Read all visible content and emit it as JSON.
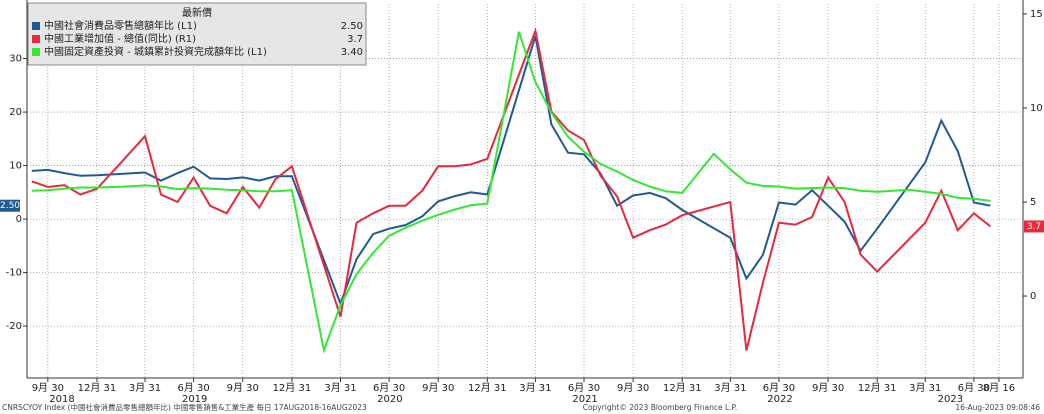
{
  "chart_data": {
    "type": "line",
    "legend_header": "最新價",
    "xlim": [
      "2018-08-22",
      "2023-09-30"
    ],
    "ylim": [
      -29.7,
      40.2
    ],
    "yticks": [
      -20,
      -10,
      0,
      10,
      20,
      30
    ],
    "y2lim": [
      -4.36,
      15.53
    ],
    "y2ticks": [
      0,
      5,
      10,
      15
    ],
    "grid": true,
    "xticks": [
      {
        "value": "2018-09-30",
        "label": "9月 30"
      },
      {
        "value": "2018-12-31",
        "label": "12月 31"
      },
      {
        "value": "2019-03-31",
        "label": "3月 31"
      },
      {
        "value": "2019-06-30",
        "label": "6月 30"
      },
      {
        "value": "2019-09-30",
        "label": "9月 30"
      },
      {
        "value": "2019-12-31",
        "label": "12月 31"
      },
      {
        "value": "2020-03-31",
        "label": "3月 31"
      },
      {
        "value": "2020-06-30",
        "label": "6月 30"
      },
      {
        "value": "2020-09-30",
        "label": "9月 30"
      },
      {
        "value": "2020-12-31",
        "label": "12月 31"
      },
      {
        "value": "2021-03-31",
        "label": "3月 31"
      },
      {
        "value": "2021-06-30",
        "label": "6月 30"
      },
      {
        "value": "2021-09-30",
        "label": "9月 30"
      },
      {
        "value": "2021-12-31",
        "label": "12月 31"
      },
      {
        "value": "2022-03-31",
        "label": "3月 31"
      },
      {
        "value": "2022-06-30",
        "label": "6月 30"
      },
      {
        "value": "2022-09-30",
        "label": "9月 30"
      },
      {
        "value": "2022-12-31",
        "label": "12月 31"
      },
      {
        "value": "2023-03-31",
        "label": "3月 31"
      },
      {
        "value": "2023-06-30",
        "label": "6月 30"
      },
      {
        "value": "2023-08-16",
        "label": "8月 16"
      }
    ],
    "x_year_labels": [
      "2018",
      "2019",
      "2020",
      "2021",
      "2022",
      "2023"
    ],
    "series": [
      {
        "name": "中國社會消費品零售總額年比 (L1)",
        "latest": "2.50",
        "color": "#1f5a94",
        "axis": "y",
        "x": [
          "2018-08-31",
          "2018-09-30",
          "2018-10-31",
          "2018-11-30",
          "2018-12-31",
          "2019-03-31",
          "2019-04-30",
          "2019-05-31",
          "2019-06-30",
          "2019-07-31",
          "2019-08-31",
          "2019-09-30",
          "2019-10-31",
          "2019-11-30",
          "2019-12-31",
          "2020-03-31",
          "2020-04-30",
          "2020-05-31",
          "2020-06-30",
          "2020-07-31",
          "2020-08-31",
          "2020-09-30",
          "2020-10-31",
          "2020-11-30",
          "2020-12-31",
          "2021-03-31",
          "2021-04-30",
          "2021-05-31",
          "2021-06-30",
          "2021-07-31",
          "2021-08-31",
          "2021-09-30",
          "2021-10-31",
          "2021-11-30",
          "2021-12-31",
          "2022-03-31",
          "2022-04-30",
          "2022-05-31",
          "2022-06-30",
          "2022-07-31",
          "2022-08-31",
          "2022-09-30",
          "2022-10-31",
          "2022-11-30",
          "2022-12-31",
          "2023-03-31",
          "2023-04-30",
          "2023-05-31",
          "2023-06-30",
          "2023-07-31"
        ],
        "values": [
          9.0,
          9.2,
          8.6,
          8.1,
          8.2,
          8.7,
          7.2,
          8.6,
          9.8,
          7.6,
          7.5,
          7.8,
          7.2,
          8.0,
          8.0,
          -15.8,
          -7.5,
          -2.8,
          -1.8,
          -1.1,
          0.5,
          3.3,
          4.3,
          5.0,
          4.6,
          34.2,
          17.7,
          12.4,
          12.1,
          8.5,
          2.5,
          4.4,
          4.9,
          3.9,
          1.7,
          -3.5,
          -11.1,
          -6.7,
          3.1,
          2.7,
          5.4,
          2.5,
          -0.5,
          -5.9,
          -1.8,
          10.6,
          18.4,
          12.7,
          3.1,
          2.5
        ]
      },
      {
        "name": "中國工業增加值 - 總值(同比) (R1)",
        "latest": "3.7",
        "color": "#e8283c",
        "axis": "y2",
        "x": [
          "2018-08-31",
          "2018-09-30",
          "2018-10-31",
          "2018-11-30",
          "2018-12-31",
          "2019-03-31",
          "2019-04-30",
          "2019-05-31",
          "2019-06-30",
          "2019-07-31",
          "2019-08-31",
          "2019-09-30",
          "2019-10-31",
          "2019-11-30",
          "2019-12-31",
          "2020-03-31",
          "2020-04-30",
          "2020-05-31",
          "2020-06-30",
          "2020-07-31",
          "2020-08-31",
          "2020-09-30",
          "2020-10-31",
          "2020-11-30",
          "2020-12-31",
          "2021-03-31",
          "2021-04-30",
          "2021-05-31",
          "2021-06-30",
          "2021-07-31",
          "2021-08-31",
          "2021-09-30",
          "2021-10-31",
          "2021-11-30",
          "2021-12-31",
          "2022-03-31",
          "2022-04-30",
          "2022-05-31",
          "2022-06-30",
          "2022-07-31",
          "2022-08-31",
          "2022-09-30",
          "2022-10-31",
          "2022-11-30",
          "2022-12-31",
          "2023-03-31",
          "2023-04-30",
          "2023-05-31",
          "2023-06-30",
          "2023-07-31"
        ],
        "values": [
          6.1,
          5.8,
          5.9,
          5.4,
          5.7,
          8.5,
          5.4,
          5.0,
          6.3,
          4.8,
          4.4,
          5.8,
          4.7,
          6.2,
          6.9,
          -1.1,
          3.9,
          4.4,
          4.8,
          4.8,
          5.6,
          6.9,
          6.9,
          7.0,
          7.3,
          14.1,
          9.8,
          8.8,
          8.3,
          6.4,
          5.3,
          3.1,
          3.5,
          3.8,
          4.3,
          5.0,
          -2.9,
          0.7,
          3.9,
          3.8,
          4.2,
          6.3,
          5.0,
          2.2,
          1.3,
          3.9,
          5.6,
          3.5,
          4.4,
          3.7
        ]
      },
      {
        "name": "中國固定資產投資 - 城鎮累計投資完成額年比 (L1)",
        "latest": "3.40",
        "color": "#33e833",
        "axis": "y",
        "x": [
          "2018-08-31",
          "2018-09-30",
          "2018-10-31",
          "2018-11-30",
          "2018-12-31",
          "2019-02-28",
          "2019-03-31",
          "2019-04-30",
          "2019-05-31",
          "2019-06-30",
          "2019-07-31",
          "2019-08-31",
          "2019-09-30",
          "2019-10-31",
          "2019-11-30",
          "2019-12-31",
          "2020-02-29",
          "2020-03-31",
          "2020-04-30",
          "2020-05-31",
          "2020-06-30",
          "2020-07-31",
          "2020-08-31",
          "2020-09-30",
          "2020-10-31",
          "2020-11-30",
          "2020-12-31",
          "2021-02-28",
          "2021-03-31",
          "2021-04-30",
          "2021-05-31",
          "2021-06-30",
          "2021-07-31",
          "2021-08-31",
          "2021-09-30",
          "2021-10-31",
          "2021-11-30",
          "2021-12-31",
          "2022-02-28",
          "2022-03-31",
          "2022-04-30",
          "2022-05-31",
          "2022-06-30",
          "2022-07-31",
          "2022-08-31",
          "2022-09-30",
          "2022-10-31",
          "2022-11-30",
          "2022-12-31",
          "2023-02-28",
          "2023-03-31",
          "2023-04-30",
          "2023-05-31",
          "2023-06-30",
          "2023-07-31"
        ],
        "values": [
          5.3,
          5.4,
          5.7,
          5.9,
          5.9,
          6.1,
          6.3,
          6.1,
          5.6,
          5.8,
          5.7,
          5.5,
          5.4,
          5.2,
          5.2,
          5.4,
          -24.5,
          -16.1,
          -10.3,
          -6.3,
          -3.1,
          -1.6,
          -0.3,
          0.8,
          1.8,
          2.6,
          2.9,
          35.0,
          25.6,
          19.9,
          15.4,
          12.6,
          10.3,
          8.9,
          7.3,
          6.1,
          5.2,
          4.9,
          12.2,
          9.3,
          6.8,
          6.2,
          6.1,
          5.7,
          5.8,
          5.9,
          5.8,
          5.3,
          5.1,
          5.5,
          5.1,
          4.7,
          4.0,
          3.8,
          3.4
        ]
      }
    ],
    "footer_left": "CNRSCYOY Index (中國社會消費品零售總額年比) 中國零售銷售&工業生產 每日 17AUG2018-16AUG2023",
    "footer_center": "Copyright© 2023 Bloomberg Finance L.P.",
    "footer_right": "16-Aug-2023 09:08:46"
  }
}
